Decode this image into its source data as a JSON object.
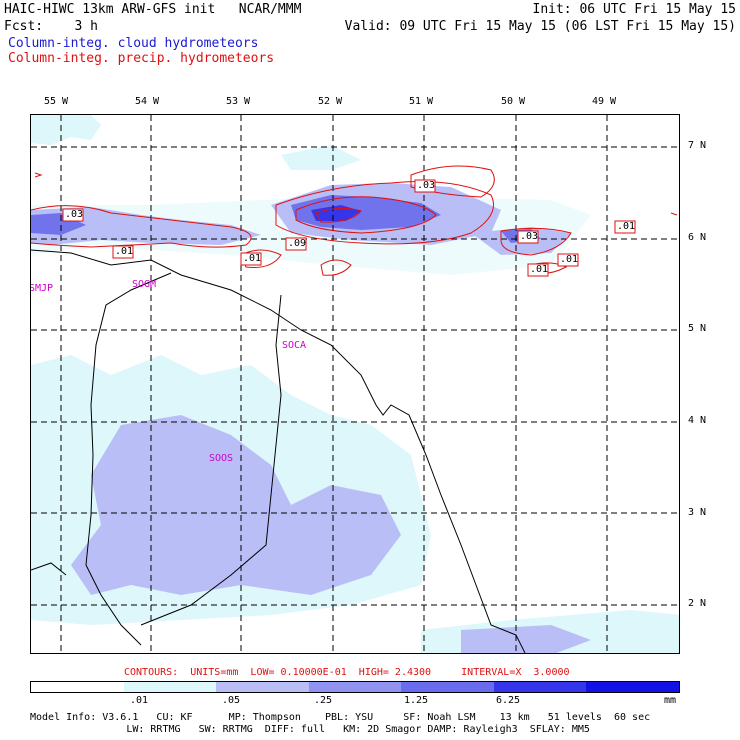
{
  "header": {
    "left_line1": "HAIC-HIWC 13km ARW-GFS init   NCAR/MMM",
    "left_line2": "Fcst:    3 h",
    "init": "Init: 06 UTC Fri 15 May 15",
    "valid": "Valid: 09 UTC Fri 15 May 15 (06 LST Fri 15 May 15)",
    "legend_blue": "Column-integ. cloud hydrometeors",
    "legend_red": "Column-integ. precip. hydrometeors"
  },
  "map": {
    "lon_labels": [
      "55 W",
      "54 W",
      "53 W",
      "52 W",
      "51 W",
      "50 W",
      "49 W"
    ],
    "lat_labels": [
      "7 N",
      "6 N",
      "5 N",
      "4 N",
      "3 N",
      "2 N"
    ],
    "stations": [
      "SMJP",
      "SOGM",
      "SOCA",
      "SOOS"
    ],
    "contour_labels": [
      ".03",
      ".01",
      ".01",
      ".09",
      ".03",
      ".03",
      ".01",
      ".01",
      ".01"
    ],
    "colors": {
      "fill_1": "#ddf7fb",
      "fill_2": "#b9bff6",
      "fill_3": "#9094f0",
      "fill_4": "#6a6cee",
      "fill_5": "#3535ea",
      "fill_6": "#1212e6",
      "contour": "#e01010",
      "station": "#cc00cc"
    }
  },
  "footer": {
    "contours": "CONTOURS:  UNITS=mm  LOW= 0.10000E-01  HIGH= 2.4300     INTERVAL=X  3.0000",
    "scale_ticks": [
      ".01",
      ".05",
      ".25",
      "1.25",
      "6.25"
    ],
    "scale_unit": "mm",
    "scale_colors": [
      "#ffffff",
      "#ddf7fb",
      "#b9bff6",
      "#9094f0",
      "#6a6cee",
      "#3535ea",
      "#1212e6"
    ],
    "model_line1": "Model Info: V3.6.1   CU: KF      MP: Thompson    PBL: YSU     SF: Noah LSM    13 km   51 levels  60 sec",
    "model_line2": "                LW: RRTMG   SW: RRTMG  DIFF: full   KM: 2D Smagor DAMP: Rayleigh3  SFLAY: MM5"
  }
}
